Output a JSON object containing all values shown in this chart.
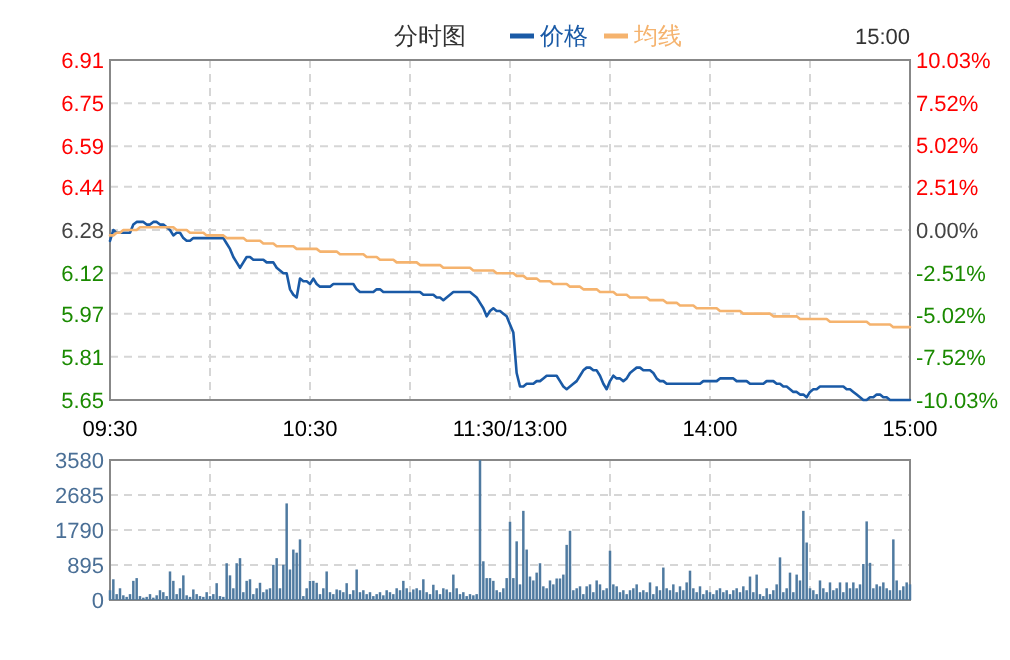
{
  "chart_data": [
    {
      "type": "line",
      "title": "分时图",
      "annotations": [
        "15:00"
      ],
      "categories": [
        "09:30",
        null,
        null,
        null,
        null,
        null,
        null,
        null,
        null,
        null,
        null,
        null,
        null,
        null,
        null,
        null,
        null,
        null,
        null,
        null,
        null,
        null,
        null,
        null,
        null,
        null,
        null,
        null,
        null,
        null,
        null,
        null,
        null,
        null,
        null,
        null,
        null,
        null,
        null,
        null,
        null,
        null,
        null,
        null,
        null,
        null,
        null,
        null,
        null,
        null,
        null,
        null,
        null,
        null,
        null,
        null,
        null,
        null,
        null,
        null,
        "10:30",
        null,
        null,
        null,
        null,
        null,
        null,
        null,
        null,
        null,
        null,
        null,
        null,
        null,
        null,
        null,
        null,
        null,
        null,
        null,
        null,
        null,
        null,
        null,
        null,
        null,
        null,
        null,
        null,
        null,
        null,
        null,
        null,
        null,
        null,
        null,
        null,
        null,
        null,
        null,
        null,
        null,
        null,
        null,
        null,
        null,
        null,
        null,
        null,
        null,
        null,
        null,
        null,
        null,
        null,
        null,
        null,
        null,
        null,
        null,
        "11:30/13:00",
        null,
        null,
        null,
        null,
        null,
        null,
        null,
        null,
        null,
        null,
        null,
        null,
        null,
        null,
        null,
        null,
        null,
        null,
        null,
        null,
        null,
        null,
        null,
        null,
        null,
        null,
        null,
        null,
        null,
        null,
        null,
        null,
        null,
        null,
        null,
        null,
        null,
        null,
        null,
        null,
        null,
        null,
        null,
        null,
        null,
        null,
        null,
        null,
        null,
        null,
        null,
        null,
        null,
        null,
        null,
        null,
        null,
        null,
        null,
        "14:00",
        null,
        null,
        null,
        null,
        null,
        null,
        null,
        null,
        null,
        null,
        null,
        null,
        null,
        null,
        null,
        null,
        null,
        null,
        null,
        null,
        null,
        null,
        null,
        null,
        null,
        null,
        null,
        null,
        null,
        null,
        null,
        null,
        null,
        null,
        null,
        null,
        null,
        null,
        null,
        null,
        null,
        null,
        null,
        null,
        null,
        null,
        null,
        null,
        null,
        null,
        null,
        null,
        null,
        null,
        null,
        null,
        null,
        null,
        null,
        "15:00"
      ],
      "ylim": [
        5.65,
        6.91
      ],
      "yticks": [
        5.65,
        5.81,
        5.97,
        6.12,
        6.28,
        6.44,
        6.59,
        6.75,
        6.91
      ],
      "y2lim": [
        -10.03,
        10.03
      ],
      "y2ticks": [
        {
          "value": -10.03,
          "label": "-10.03%"
        },
        {
          "value": -7.52,
          "label": "-7.52%"
        },
        {
          "value": -5.02,
          "label": "-5.02%"
        },
        {
          "value": -2.51,
          "label": "-2.51%"
        },
        {
          "value": 0,
          "label": "0.00%"
        },
        {
          "value": 2.51,
          "label": "2.51%"
        },
        {
          "value": 5.02,
          "label": "5.02%"
        },
        {
          "value": 7.52,
          "label": "7.52%"
        },
        {
          "value": 10.03,
          "label": "10.03%"
        }
      ],
      "grid": true,
      "legend": "top",
      "line_style": "solid",
      "series": [
        {
          "name": "价格",
          "color": "#1a5aa6",
          "values": [
            6.24,
            6.28,
            6.27,
            6.27,
            6.27,
            6.27,
            6.27,
            6.3,
            6.31,
            6.31,
            6.31,
            6.3,
            6.3,
            6.31,
            6.31,
            6.3,
            6.3,
            6.29,
            6.28,
            6.26,
            6.27,
            6.27,
            6.25,
            6.24,
            6.24,
            6.25,
            6.25,
            6.25,
            6.25,
            6.25,
            6.25,
            6.25,
            6.25,
            6.25,
            6.25,
            6.23,
            6.21,
            6.18,
            6.16,
            6.14,
            6.16,
            6.18,
            6.18,
            6.17,
            6.17,
            6.17,
            6.17,
            6.16,
            6.16,
            6.16,
            6.14,
            6.13,
            6.12,
            6.12,
            6.06,
            6.04,
            6.03,
            6.1,
            6.09,
            6.09,
            6.08,
            6.1,
            6.08,
            6.07,
            6.07,
            6.07,
            6.07,
            6.08,
            6.08,
            6.08,
            6.08,
            6.08,
            6.08,
            6.08,
            6.06,
            6.05,
            6.05,
            6.05,
            6.05,
            6.05,
            6.06,
            6.06,
            6.05,
            6.05,
            6.05,
            6.05,
            6.05,
            6.05,
            6.05,
            6.05,
            6.05,
            6.05,
            6.05,
            6.05,
            6.04,
            6.04,
            6.04,
            6.04,
            6.03,
            6.03,
            6.02,
            6.03,
            6.04,
            6.05,
            6.05,
            6.05,
            6.05,
            6.05,
            6.05,
            6.04,
            6.03,
            6.01,
            5.99,
            5.96,
            5.98,
            5.99,
            5.98,
            5.98,
            5.97,
            5.96,
            5.93,
            5.9,
            5.75,
            5.7,
            5.7,
            5.71,
            5.71,
            5.71,
            5.72,
            5.72,
            5.73,
            5.74,
            5.74,
            5.74,
            5.74,
            5.72,
            5.7,
            5.69,
            5.7,
            5.71,
            5.72,
            5.74,
            5.76,
            5.77,
            5.77,
            5.76,
            5.76,
            5.74,
            5.71,
            5.69,
            5.72,
            5.74,
            5.73,
            5.73,
            5.72,
            5.73,
            5.75,
            5.76,
            5.77,
            5.77,
            5.76,
            5.76,
            5.76,
            5.75,
            5.73,
            5.72,
            5.72,
            5.71,
            5.71,
            5.71,
            5.71,
            5.71,
            5.71,
            5.71,
            5.71,
            5.71,
            5.71,
            5.71,
            5.72,
            5.72,
            5.72,
            5.72,
            5.72,
            5.73,
            5.73,
            5.73,
            5.73,
            5.73,
            5.72,
            5.72,
            5.72,
            5.72,
            5.71,
            5.71,
            5.71,
            5.71,
            5.71,
            5.72,
            5.72,
            5.72,
            5.71,
            5.71,
            5.7,
            5.7,
            5.69,
            5.68,
            5.68,
            5.67,
            5.67,
            5.66,
            5.68,
            5.69,
            5.69,
            5.7,
            5.7,
            5.7,
            5.7,
            5.7,
            5.7,
            5.7,
            5.7,
            5.69,
            5.69,
            5.68,
            5.67,
            5.66,
            5.65,
            5.65,
            5.66,
            5.66,
            5.67,
            5.67,
            5.66,
            5.66,
            5.65,
            5.65,
            5.65,
            5.65,
            5.65,
            5.65,
            5.65
          ]
        },
        {
          "name": "均线",
          "color": "#f5b36e",
          "values": [
            6.26,
            6.26,
            6.27,
            6.27,
            6.28,
            6.28,
            6.28,
            6.28,
            6.28,
            6.29,
            6.29,
            6.29,
            6.29,
            6.29,
            6.29,
            6.29,
            6.29,
            6.29,
            6.29,
            6.29,
            6.28,
            6.28,
            6.28,
            6.28,
            6.27,
            6.27,
            6.27,
            6.27,
            6.27,
            6.26,
            6.26,
            6.26,
            6.26,
            6.26,
            6.26,
            6.25,
            6.25,
            6.25,
            6.25,
            6.25,
            6.25,
            6.24,
            6.24,
            6.24,
            6.24,
            6.24,
            6.23,
            6.23,
            6.23,
            6.23,
            6.22,
            6.22,
            6.22,
            6.22,
            6.22,
            6.22,
            6.21,
            6.21,
            6.21,
            6.21,
            6.21,
            6.21,
            6.21,
            6.2,
            6.2,
            6.2,
            6.2,
            6.2,
            6.2,
            6.19,
            6.19,
            6.19,
            6.19,
            6.19,
            6.19,
            6.19,
            6.19,
            6.18,
            6.18,
            6.18,
            6.18,
            6.17,
            6.17,
            6.17,
            6.17,
            6.17,
            6.16,
            6.16,
            6.16,
            6.16,
            6.16,
            6.16,
            6.16,
            6.15,
            6.15,
            6.15,
            6.15,
            6.15,
            6.15,
            6.15,
            6.14,
            6.14,
            6.14,
            6.14,
            6.14,
            6.14,
            6.14,
            6.14,
            6.14,
            6.13,
            6.13,
            6.13,
            6.13,
            6.13,
            6.13,
            6.13,
            6.12,
            6.12,
            6.12,
            6.12,
            6.12,
            6.12,
            6.11,
            6.11,
            6.11,
            6.1,
            6.1,
            6.1,
            6.1,
            6.09,
            6.09,
            6.09,
            6.09,
            6.08,
            6.08,
            6.08,
            6.08,
            6.08,
            6.07,
            6.07,
            6.07,
            6.07,
            6.06,
            6.06,
            6.06,
            6.06,
            6.06,
            6.05,
            6.05,
            6.05,
            6.05,
            6.05,
            6.04,
            6.04,
            6.04,
            6.04,
            6.03,
            6.03,
            6.03,
            6.03,
            6.03,
            6.03,
            6.02,
            6.02,
            6.02,
            6.02,
            6.02,
            6.01,
            6.01,
            6.01,
            6.01,
            6.0,
            6.0,
            6.0,
            6.0,
            6.0,
            5.99,
            5.99,
            5.99,
            5.99,
            5.99,
            5.99,
            5.99,
            5.98,
            5.98,
            5.98,
            5.98,
            5.98,
            5.98,
            5.98,
            5.97,
            5.97,
            5.97,
            5.97,
            5.97,
            5.97,
            5.97,
            5.97,
            5.97,
            5.96,
            5.96,
            5.96,
            5.96,
            5.96,
            5.96,
            5.96,
            5.96,
            5.95,
            5.95,
            5.95,
            5.95,
            5.95,
            5.95,
            5.95,
            5.95,
            5.95,
            5.94,
            5.94,
            5.94,
            5.94,
            5.94,
            5.94,
            5.94,
            5.94,
            5.94,
            5.94,
            5.94,
            5.94,
            5.93,
            5.93,
            5.93,
            5.93,
            5.93,
            5.93,
            5.93,
            5.92,
            5.92,
            5.92,
            5.92,
            5.92,
            5.92
          ]
        }
      ]
    },
    {
      "type": "bar",
      "categories": [
        null,
        null,
        null,
        null,
        null,
        null,
        null,
        null,
        null,
        null,
        null,
        null,
        null,
        null,
        null,
        null,
        null,
        null,
        null,
        null,
        null,
        null,
        null,
        null,
        null,
        null,
        null,
        null,
        null,
        null,
        null,
        null,
        null,
        null,
        null,
        null,
        null,
        null,
        null,
        null,
        null,
        null,
        null,
        null,
        null,
        null,
        null,
        null,
        null,
        null,
        null,
        null,
        null,
        null,
        null,
        null,
        null,
        null,
        null,
        null,
        null,
        null,
        null,
        null,
        null,
        null,
        null,
        null,
        null,
        null,
        null,
        null,
        null,
        null,
        null,
        null,
        null,
        null,
        null,
        null,
        null,
        null,
        null,
        null,
        null,
        null,
        null,
        null,
        null,
        null,
        null,
        null,
        null,
        null,
        null,
        null,
        null,
        null,
        null,
        null,
        null,
        null,
        null,
        null,
        null,
        null,
        null,
        null,
        null,
        null,
        null,
        null,
        null,
        null,
        null,
        null,
        null,
        null,
        null,
        null,
        null,
        null,
        null,
        null,
        null,
        null,
        null,
        null,
        null,
        null,
        null,
        null,
        null,
        null,
        null,
        null,
        null,
        null,
        null,
        null,
        null,
        null,
        null,
        null,
        null,
        null,
        null,
        null,
        null,
        null,
        null,
        null,
        null,
        null,
        null,
        null,
        null,
        null,
        null,
        null,
        null,
        null,
        null,
        null,
        null,
        null,
        null,
        null,
        null,
        null,
        null,
        null,
        null,
        null,
        null,
        null,
        null,
        null,
        null,
        null,
        null,
        null,
        null,
        null,
        null,
        null,
        null,
        null,
        null,
        null,
        null,
        null,
        null,
        null,
        null,
        null,
        null,
        null,
        null,
        null,
        null,
        null,
        null,
        null,
        null,
        null,
        null,
        null,
        null,
        null,
        null,
        null,
        null,
        null,
        null,
        null,
        null,
        null,
        null,
        null,
        null,
        null,
        null,
        null,
        null,
        null,
        null,
        null,
        null,
        null,
        null,
        null,
        null,
        null,
        null,
        null,
        null,
        null,
        null,
        null,
        null
      ],
      "ylim": [
        0,
        3580
      ],
      "yticks": [
        0,
        895,
        1790,
        2685,
        3580
      ],
      "grid": true,
      "tick_labels": "y",
      "series": [
        {
          "color": "#4f7aa0",
          "values": [
            250,
            530,
            150,
            300,
            120,
            80,
            150,
            490,
            560,
            100,
            60,
            80,
            150,
            60,
            120,
            250,
            200,
            100,
            730,
            490,
            150,
            300,
            630,
            120,
            80,
            270,
            150,
            100,
            80,
            200,
            100,
            150,
            430,
            100,
            80,
            940,
            630,
            300,
            940,
            1070,
            200,
            490,
            530,
            150,
            300,
            440,
            200,
            270,
            300,
            900,
            1070,
            300,
            900,
            2470,
            780,
            1290,
            1210,
            1550,
            100,
            300,
            490,
            490,
            440,
            150,
            300,
            730,
            200,
            150,
            270,
            250,
            200,
            430,
            150,
            250,
            780,
            200,
            250,
            150,
            200,
            100,
            150,
            200,
            120,
            250,
            200,
            150,
            300,
            250,
            490,
            300,
            200,
            270,
            300,
            250,
            530,
            200,
            150,
            390,
            250,
            150,
            300,
            270,
            200,
            650,
            300,
            150,
            200,
            100,
            150,
            120,
            150,
            3580,
            990,
            560,
            560,
            490,
            250,
            200,
            300,
            560,
            2000,
            560,
            1500,
            400,
            2280,
            1290,
            600,
            500,
            700,
            940,
            350,
            300,
            500,
            400,
            550,
            550,
            650,
            1410,
            1770,
            250,
            300,
            350,
            150,
            350,
            400,
            200,
            500,
            400,
            250,
            300,
            1260,
            400,
            350,
            200,
            250,
            150,
            250,
            300,
            400,
            200,
            250,
            200,
            450,
            150,
            350,
            250,
            830,
            300,
            250,
            400,
            200,
            350,
            250,
            450,
            750,
            300,
            200,
            350,
            150,
            250,
            200,
            150,
            250,
            300,
            200,
            250,
            150,
            250,
            300,
            200,
            350,
            250,
            600,
            200,
            650,
            150,
            100,
            300,
            150,
            250,
            400,
            1090,
            200,
            300,
            700,
            200,
            650,
            500,
            2280,
            1470,
            300,
            250,
            150,
            500,
            300,
            200,
            450,
            250,
            300,
            450,
            200,
            450,
            300,
            450,
            300,
            400,
            920,
            2010,
            950,
            300,
            400,
            350,
            450,
            300,
            250,
            1550,
            500,
            250,
            350,
            450,
            400
          ]
        }
      ]
    }
  ]
}
